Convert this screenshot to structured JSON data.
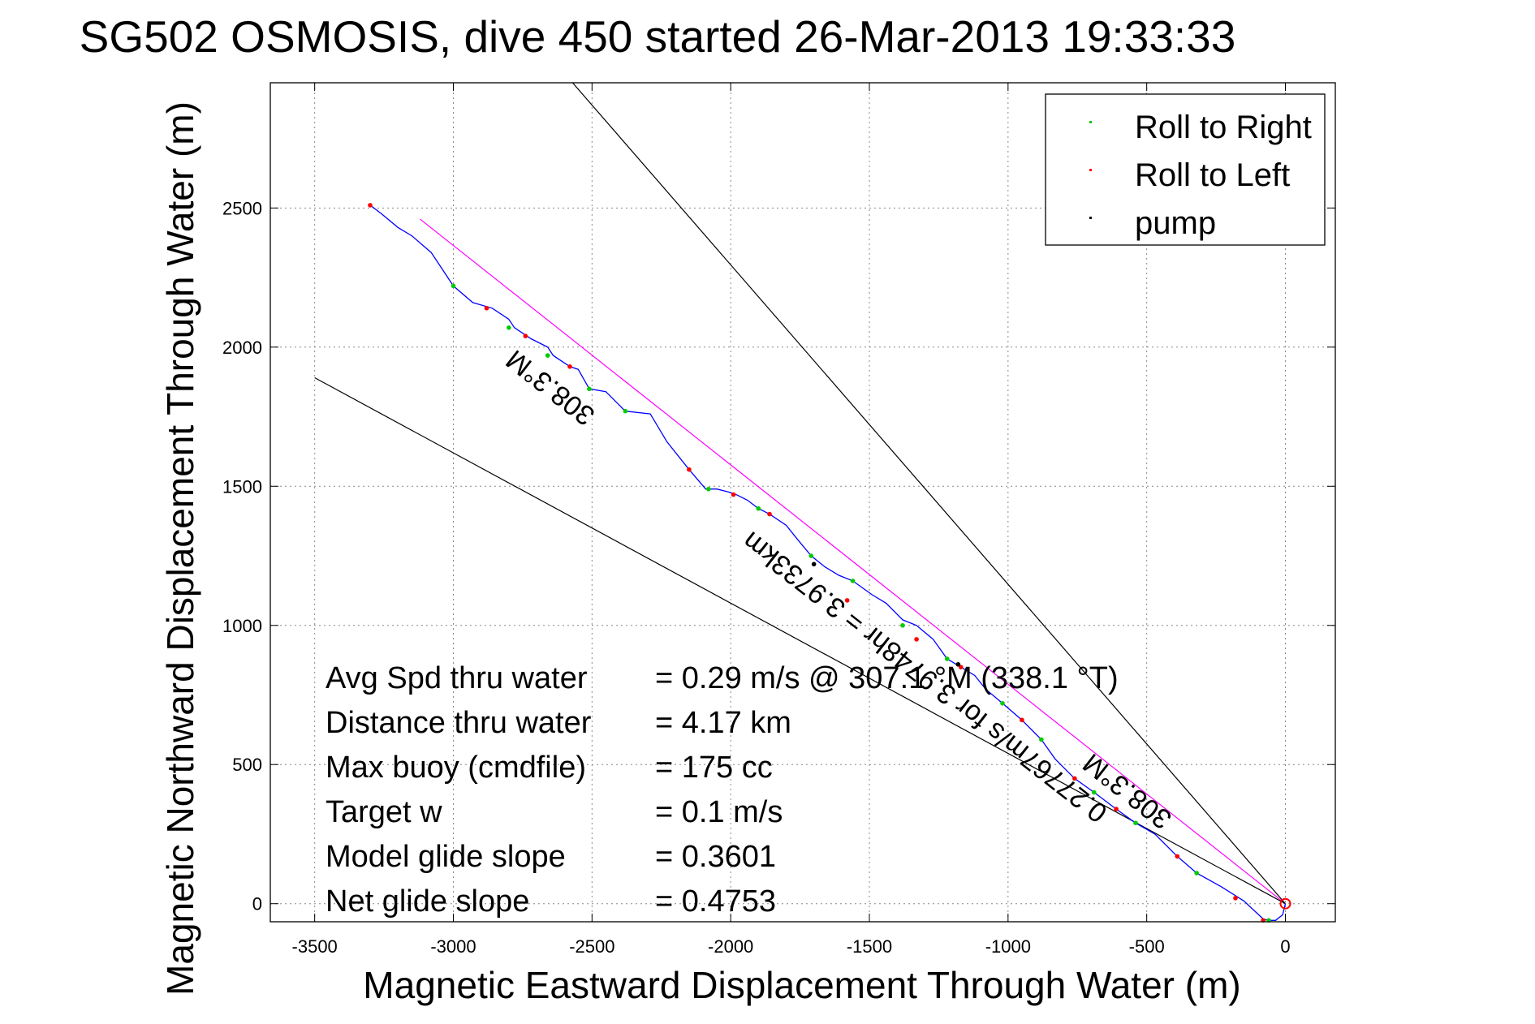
{
  "chart_data": {
    "type": "line",
    "title": "SG502 OSMOSIS, dive 450 started 26-Mar-2013 19:33:33",
    "xlabel": "Magnetic Eastward Displacement Through Water (m)",
    "ylabel": "Magnetic Northward Displacement Through Water (m)",
    "xlim": [
      -3660,
      180
    ],
    "ylim": [
      -65,
      2950
    ],
    "x_ticks": [
      -3500,
      -3000,
      -2500,
      -2000,
      -1500,
      -1000,
      -500,
      0
    ],
    "y_ticks": [
      0,
      500,
      1000,
      1500,
      2000,
      2500
    ],
    "x_tick_labels": [
      "-3500",
      "-3000",
      "-2500",
      "-2000",
      "-1500",
      "-1000",
      "-500",
      "0"
    ],
    "y_tick_labels": [
      "0",
      "500",
      "1000",
      "1500",
      "2000",
      "2500"
    ],
    "grid": true,
    "legend_position": "top-right",
    "legend": [
      {
        "label": "Roll to Right",
        "color": "#00cc00"
      },
      {
        "label": "Roll to Left",
        "color": "#ff0000"
      },
      {
        "label": "pump",
        "color": "#000000"
      }
    ],
    "track": {
      "color": "#0000ff",
      "x": [
        0,
        -10,
        -35,
        -60,
        -80,
        -150,
        -230,
        -320,
        -390,
        -470,
        -540,
        -610,
        -690,
        -760,
        -830,
        -880,
        -950,
        -1020,
        -1080,
        -1120,
        -1170,
        -1220,
        -1270,
        -1330,
        -1380,
        -1440,
        -1490,
        -1560,
        -1610,
        -1660,
        -1710,
        -1760,
        -1800,
        -1860,
        -1900,
        -1940,
        -1980,
        -2010,
        -2050,
        -2090,
        -2150,
        -2230,
        -2290,
        -2380,
        -2450,
        -2510,
        -2550,
        -2580,
        -2640,
        -2660,
        -2720,
        -2780,
        -2800,
        -2860,
        -2930,
        -3000,
        -3080,
        -3150,
        -3200,
        -3260,
        -3300
      ],
      "y": [
        0,
        -40,
        -60,
        -60,
        -55,
        10,
        60,
        110,
        170,
        250,
        290,
        340,
        400,
        450,
        520,
        590,
        660,
        720,
        770,
        820,
        850,
        880,
        950,
        1000,
        1020,
        1080,
        1110,
        1160,
        1180,
        1210,
        1250,
        1310,
        1360,
        1400,
        1420,
        1450,
        1470,
        1480,
        1490,
        1490,
        1560,
        1660,
        1760,
        1770,
        1840,
        1850,
        1920,
        1930,
        1970,
        2000,
        2030,
        2070,
        2100,
        2140,
        2160,
        2220,
        2340,
        2400,
        2430,
        2480,
        2510
      ]
    },
    "roll_right_points": {
      "x": [
        -60,
        -320,
        -540,
        -690,
        -880,
        -1020,
        -1220,
        -1380,
        -1560,
        -1710,
        -1900,
        -2080,
        -2380,
        -2510,
        -2660,
        -2800,
        -3000
      ],
      "y": [
        -60,
        110,
        290,
        400,
        590,
        720,
        880,
        1000,
        1160,
        1250,
        1420,
        1490,
        1770,
        1850,
        1970,
        2070,
        2220
      ]
    },
    "roll_left_points": {
      "x": [
        -80,
        -180,
        -390,
        -610,
        -760,
        -950,
        -1170,
        -1330,
        -1580,
        -1860,
        -1990,
        -2150,
        -2580,
        -2740,
        -2880,
        -3300
      ],
      "y": [
        -60,
        20,
        170,
        340,
        450,
        660,
        850,
        950,
        1090,
        1400,
        1470,
        1560,
        1930,
        2040,
        2140,
        2510
      ]
    },
    "pump_points": {
      "x": [
        -1700,
        -1180
      ],
      "y": [
        1220,
        860
      ]
    },
    "reference_lines": [
      {
        "name": "track_to_target",
        "color": "#ff00ff",
        "x": [
          0,
          -3120
        ],
        "y": [
          0,
          2460
        ]
      },
      {
        "name": "upper_bound",
        "color": "#000000",
        "x": [
          0,
          -2570
        ],
        "y": [
          0,
          2950
        ]
      },
      {
        "name": "lower_bound",
        "color": "#000000",
        "x": [
          0,
          -3500
        ],
        "y": [
          0,
          1890
        ]
      }
    ],
    "annotations": [
      {
        "text": "308.3°M",
        "x": -2630,
        "y": 1880,
        "angle": 38
      },
      {
        "text": "0.27767m/s for 3.9748hr = 3.9733km",
        "x": -1280,
        "y": 840,
        "angle": 38
      },
      {
        "text": "308.3°M",
        "x": -550,
        "y": 430,
        "angle": 38
      }
    ],
    "stats": [
      {
        "label": "Avg Spd thru water",
        "value": "=  0.29 m/s @ 307.1 °M (338.1 °T)"
      },
      {
        "label": "Distance thru water",
        "value": "=  4.17 km"
      },
      {
        "label": "Max buoy (cmdfile)",
        "value": "= 175 cc"
      },
      {
        "label": "Target w",
        "value": "= 0.1 m/s"
      },
      {
        "label": "Model glide slope",
        "value": "= 0.3601"
      },
      {
        "label": "Net glide slope",
        "value": "= 0.4753"
      }
    ]
  }
}
